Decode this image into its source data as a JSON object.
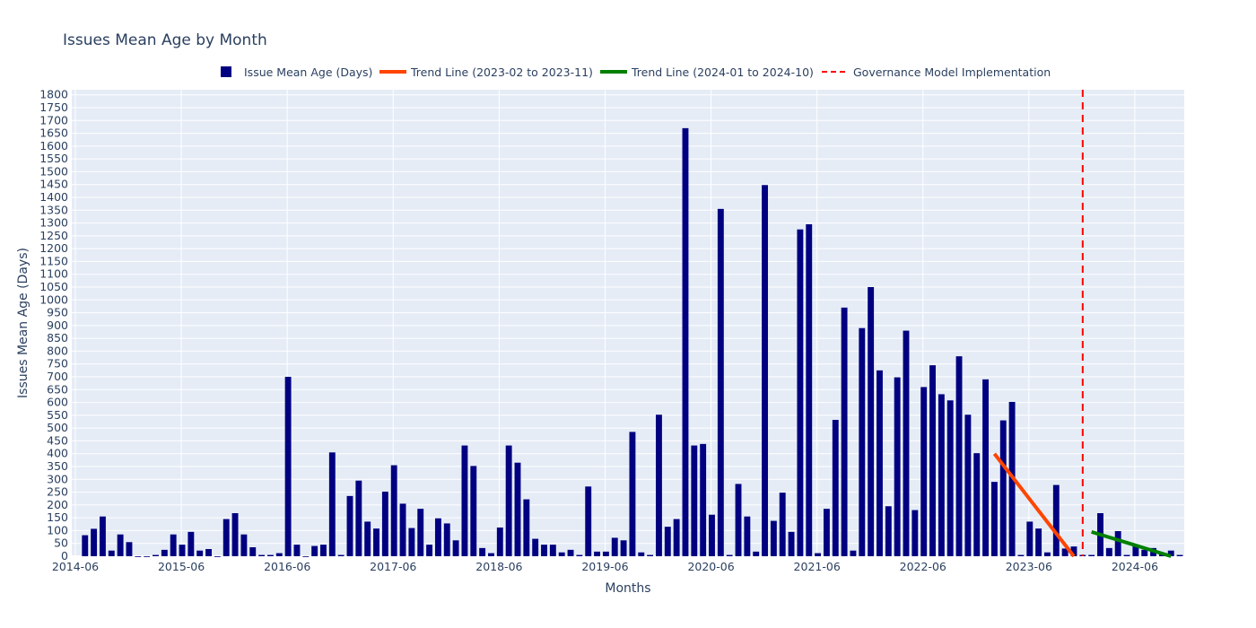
{
  "chart_data": {
    "type": "bar",
    "title": "Issues Mean Age by Month",
    "xlabel": "Months",
    "ylabel": "Issues Mean Age (Days)",
    "ylim": [
      0,
      1820
    ],
    "yticks": [
      0,
      50,
      100,
      150,
      200,
      250,
      300,
      350,
      400,
      450,
      500,
      550,
      600,
      650,
      700,
      750,
      800,
      850,
      900,
      950,
      1000,
      1050,
      1100,
      1150,
      1200,
      1250,
      1300,
      1350,
      1400,
      1450,
      1500,
      1550,
      1600,
      1650,
      1700,
      1750,
      1800
    ],
    "xticks": [
      "2014-06",
      "2015-06",
      "2016-06",
      "2017-06",
      "2018-06",
      "2019-06",
      "2020-06",
      "2021-06",
      "2022-06",
      "2023-06",
      "2024-06"
    ],
    "grid": true,
    "legend_position": "top",
    "plot_background": "#e5ecf6",
    "series": [
      {
        "name": "Issue Mean Age (Days)",
        "kind": "bar",
        "color": "#000080",
        "points": [
          [
            "2014-07",
            82
          ],
          [
            "2014-08",
            107
          ],
          [
            "2014-09",
            155
          ],
          [
            "2014-10",
            22
          ],
          [
            "2014-11",
            85
          ],
          [
            "2014-12",
            55
          ],
          [
            "2015-01",
            0
          ],
          [
            "2015-02",
            0
          ],
          [
            "2015-03",
            5
          ],
          [
            "2015-04",
            25
          ],
          [
            "2015-05",
            85
          ],
          [
            "2015-06",
            45
          ],
          [
            "2015-07",
            95
          ],
          [
            "2015-08",
            22
          ],
          [
            "2015-09",
            28
          ],
          [
            "2015-10",
            0
          ],
          [
            "2015-11",
            145
          ],
          [
            "2015-12",
            168
          ],
          [
            "2016-01",
            85
          ],
          [
            "2016-02",
            35
          ],
          [
            "2016-03",
            5
          ],
          [
            "2016-04",
            5
          ],
          [
            "2016-05",
            12
          ],
          [
            "2016-06",
            700
          ],
          [
            "2016-07",
            45
          ],
          [
            "2016-08",
            0
          ],
          [
            "2016-09",
            40
          ],
          [
            "2016-10",
            45
          ],
          [
            "2016-11",
            405
          ],
          [
            "2016-12",
            5
          ],
          [
            "2017-01",
            235
          ],
          [
            "2017-02",
            295
          ],
          [
            "2017-03",
            135
          ],
          [
            "2017-04",
            108
          ],
          [
            "2017-05",
            252
          ],
          [
            "2017-06",
            355
          ],
          [
            "2017-07",
            205
          ],
          [
            "2017-08",
            110
          ],
          [
            "2017-09",
            185
          ],
          [
            "2017-10",
            45
          ],
          [
            "2017-11",
            148
          ],
          [
            "2017-12",
            128
          ],
          [
            "2018-01",
            62
          ],
          [
            "2018-02",
            432
          ],
          [
            "2018-03",
            352
          ],
          [
            "2018-04",
            32
          ],
          [
            "2018-05",
            12
          ],
          [
            "2018-06",
            112
          ],
          [
            "2018-07",
            432
          ],
          [
            "2018-08",
            365
          ],
          [
            "2018-09",
            222
          ],
          [
            "2018-10",
            68
          ],
          [
            "2018-11",
            45
          ],
          [
            "2018-12",
            45
          ],
          [
            "2019-01",
            15
          ],
          [
            "2019-02",
            25
          ],
          [
            "2019-03",
            5
          ],
          [
            "2019-04",
            272
          ],
          [
            "2019-05",
            18
          ],
          [
            "2019-06",
            18
          ],
          [
            "2019-07",
            72
          ],
          [
            "2019-08",
            62
          ],
          [
            "2019-09",
            485
          ],
          [
            "2019-10",
            15
          ],
          [
            "2019-11",
            5
          ],
          [
            "2019-12",
            552
          ],
          [
            "2020-01",
            115
          ],
          [
            "2020-02",
            145
          ],
          [
            "2020-03",
            1670
          ],
          [
            "2020-04",
            432
          ],
          [
            "2020-05",
            438
          ],
          [
            "2020-06",
            162
          ],
          [
            "2020-07",
            1355
          ],
          [
            "2020-08",
            5
          ],
          [
            "2020-09",
            282
          ],
          [
            "2020-10",
            155
          ],
          [
            "2020-11",
            18
          ],
          [
            "2020-12",
            1448
          ],
          [
            "2021-01",
            138
          ],
          [
            "2021-02",
            248
          ],
          [
            "2021-03",
            95
          ],
          [
            "2021-04",
            1275
          ],
          [
            "2021-05",
            1295
          ],
          [
            "2021-06",
            12
          ],
          [
            "2021-07",
            185
          ],
          [
            "2021-08",
            532
          ],
          [
            "2021-09",
            970
          ],
          [
            "2021-10",
            22
          ],
          [
            "2021-11",
            890
          ],
          [
            "2021-12",
            1050
          ],
          [
            "2022-01",
            725
          ],
          [
            "2022-02",
            195
          ],
          [
            "2022-03",
            698
          ],
          [
            "2022-04",
            880
          ],
          [
            "2022-05",
            180
          ],
          [
            "2022-06",
            660
          ],
          [
            "2022-07",
            745
          ],
          [
            "2022-08",
            632
          ],
          [
            "2022-09",
            608
          ],
          [
            "2022-10",
            780
          ],
          [
            "2022-11",
            552
          ],
          [
            "2022-12",
            402
          ],
          [
            "2023-01",
            690
          ],
          [
            "2023-02",
            290
          ],
          [
            "2023-03",
            530
          ],
          [
            "2023-04",
            602
          ],
          [
            "2023-05",
            5
          ],
          [
            "2023-06",
            135
          ],
          [
            "2023-07",
            108
          ],
          [
            "2023-08",
            15
          ],
          [
            "2023-09",
            278
          ],
          [
            "2023-10",
            30
          ],
          [
            "2023-11",
            38
          ],
          [
            "2023-12",
            5
          ],
          [
            "2024-01",
            5
          ],
          [
            "2024-02",
            168
          ],
          [
            "2024-03",
            32
          ],
          [
            "2024-04",
            98
          ],
          [
            "2024-05",
            5
          ],
          [
            "2024-06",
            42
          ],
          [
            "2024-07",
            25
          ],
          [
            "2024-08",
            32
          ],
          [
            "2024-09",
            12
          ],
          [
            "2024-10",
            22
          ],
          [
            "2024-11",
            5
          ]
        ]
      },
      {
        "name": "Trend Line (2023-02 to 2023-11)",
        "kind": "line",
        "color": "#ff4500",
        "points": [
          [
            "2023-02",
            400
          ],
          [
            "2023-11",
            0
          ]
        ]
      },
      {
        "name": "Trend Line (2024-01 to 2024-10)",
        "kind": "line",
        "color": "#008000",
        "points": [
          [
            "2024-01",
            95
          ],
          [
            "2024-10",
            0
          ]
        ]
      },
      {
        "name": "Governance Model Implementation",
        "kind": "vline",
        "color": "#ff0000",
        "dash": "dashed",
        "x": "2023-12"
      }
    ]
  }
}
